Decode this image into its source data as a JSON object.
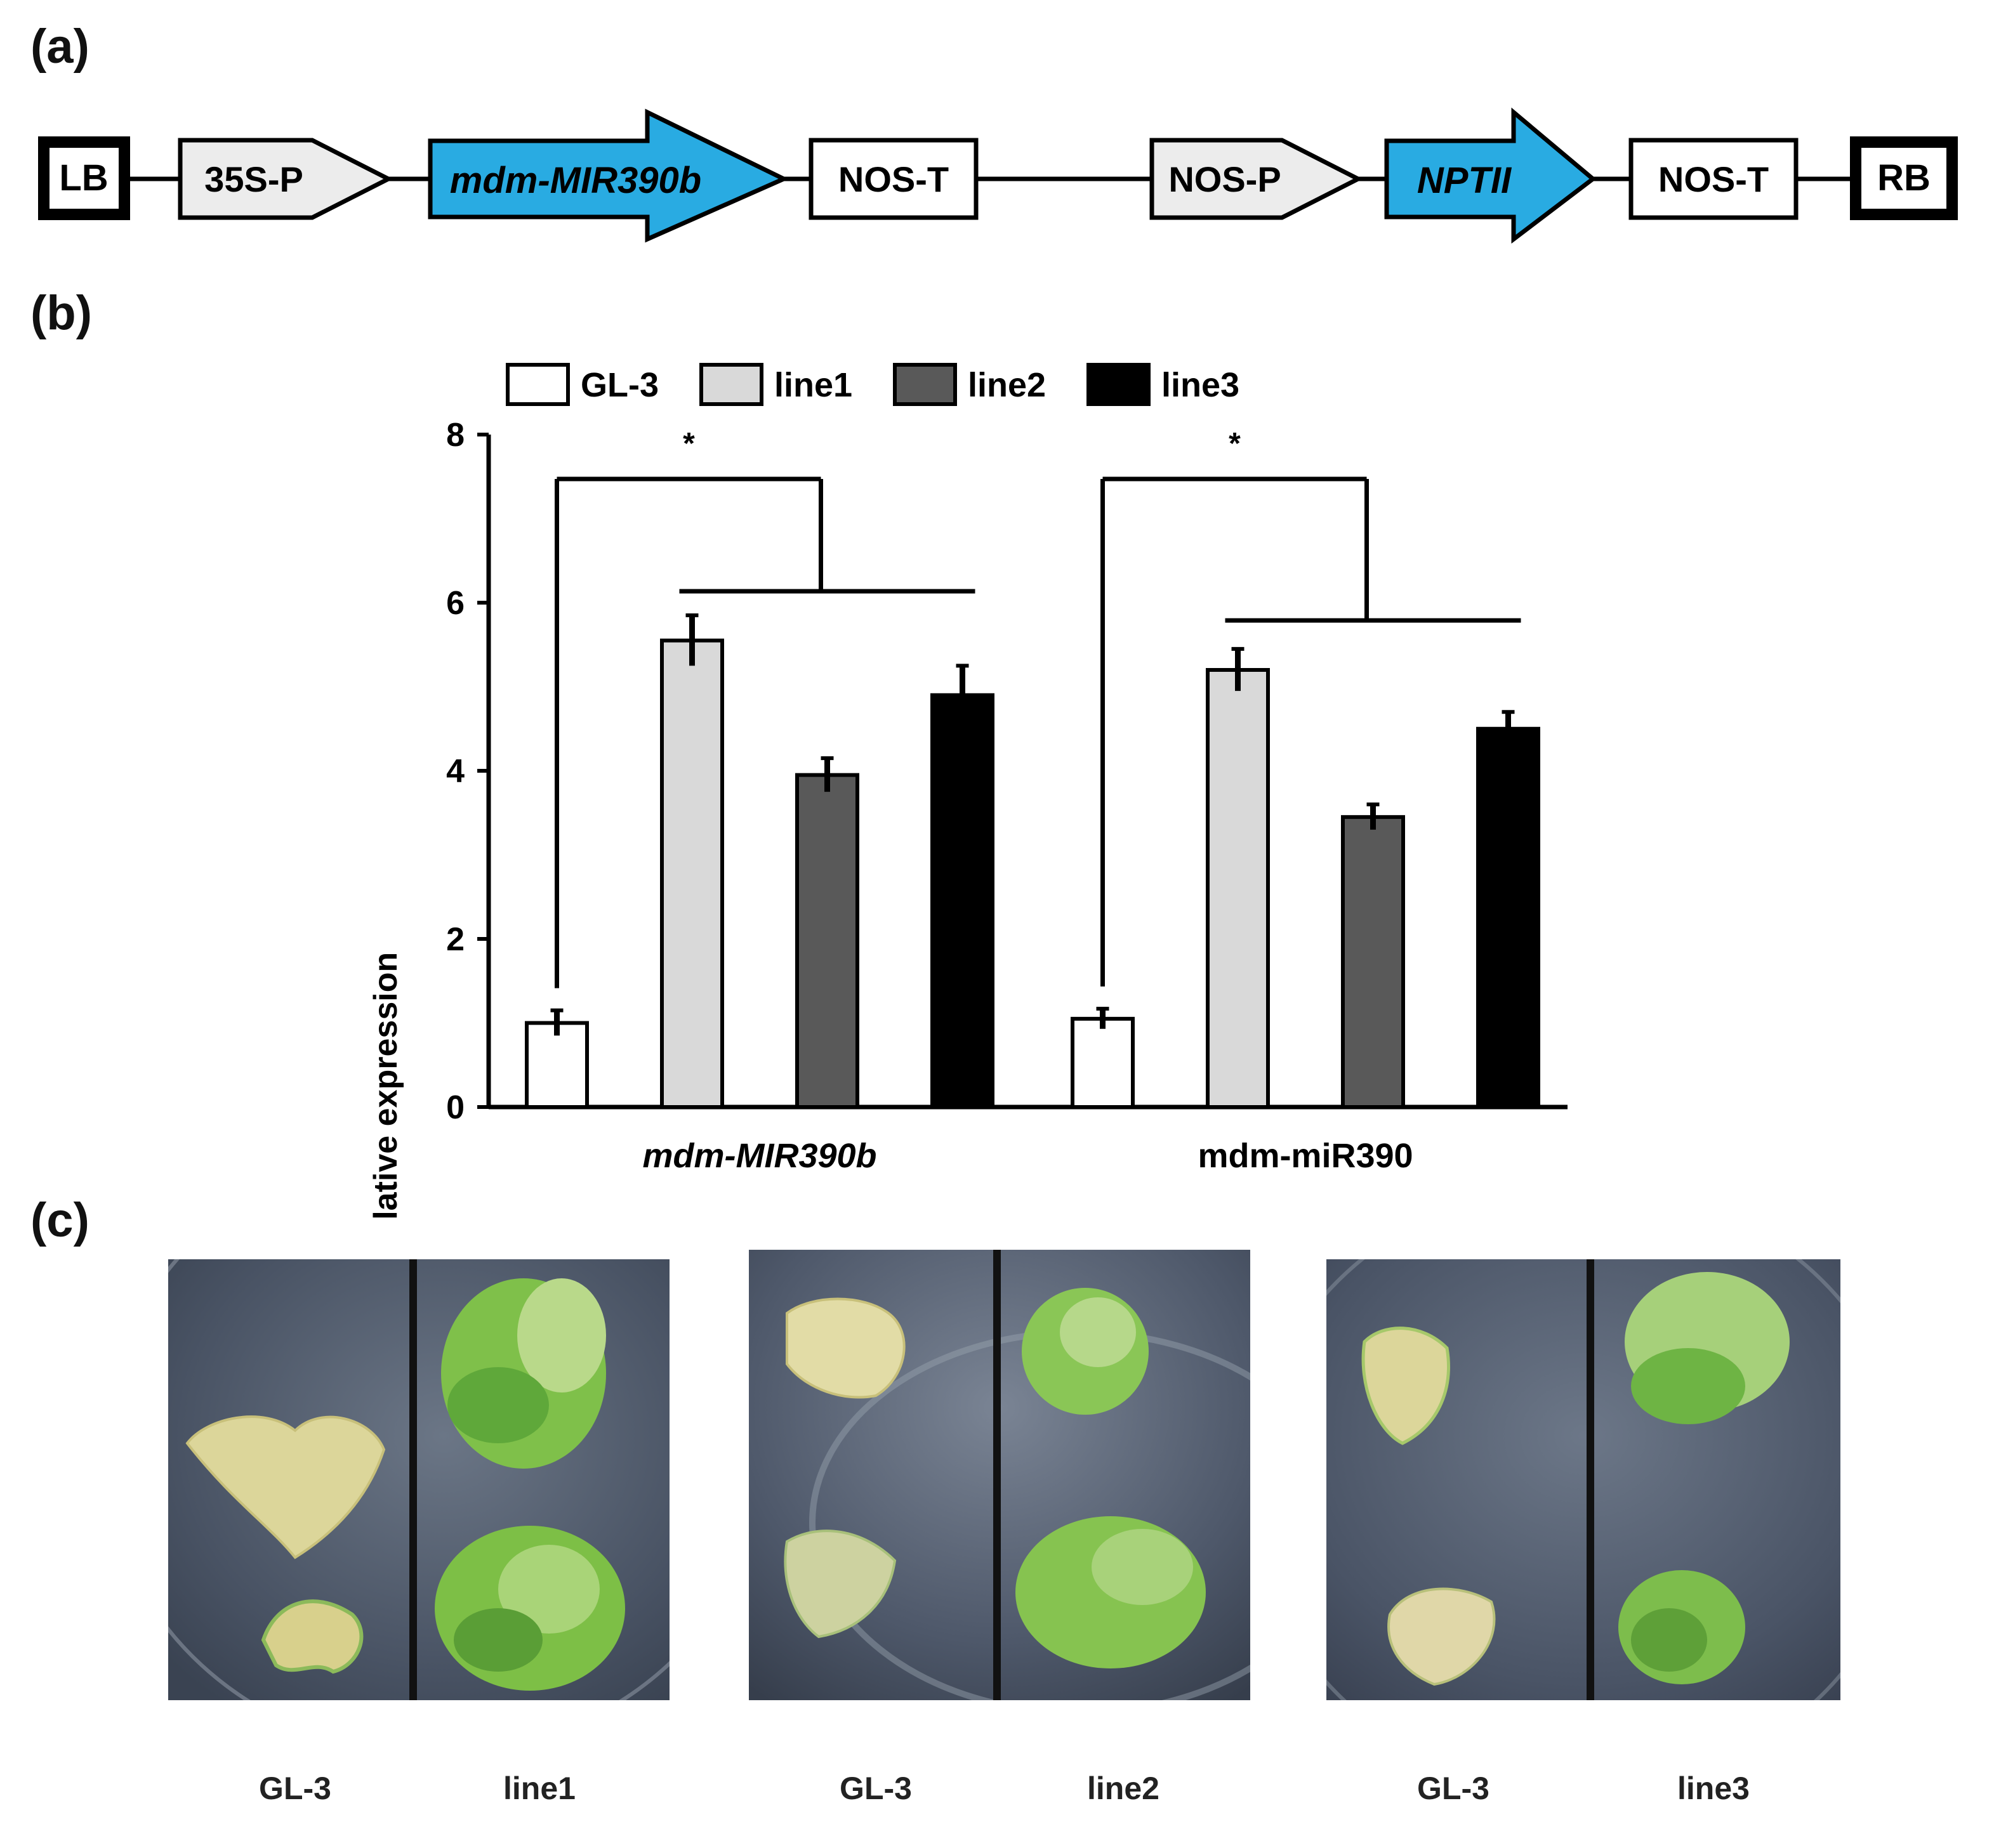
{
  "panels": {
    "a": "(a)",
    "b": "(b)",
    "c": "(c)"
  },
  "construct": {
    "elements": [
      {
        "label": "LB",
        "kind": "border"
      },
      {
        "label": "35S-P",
        "kind": "promoter"
      },
      {
        "label": "mdm-MIR390b",
        "kind": "gene"
      },
      {
        "label": "NOS-T",
        "kind": "box"
      },
      {
        "label": "NOS-P",
        "kind": "promoter"
      },
      {
        "label": "NPTII",
        "kind": "gene"
      },
      {
        "label": "NOS-T",
        "kind": "box"
      },
      {
        "label": "RB",
        "kind": "border"
      }
    ],
    "colors": {
      "gene": "#29abe2",
      "promoter": "#ececec"
    }
  },
  "chart_data": {
    "type": "bar",
    "categories": [
      "mdm-MIR390b",
      "mdm-miR390"
    ],
    "series": [
      {
        "name": "GL-3",
        "values": [
          1.0,
          1.05
        ],
        "errors": [
          0.15,
          0.12
        ],
        "color": "#ffffff"
      },
      {
        "name": "line1",
        "values": [
          5.55,
          5.2
        ],
        "errors": [
          0.3,
          0.25
        ],
        "color": "#d9d9d9"
      },
      {
        "name": "line2",
        "values": [
          3.95,
          3.45
        ],
        "errors": [
          0.2,
          0.15
        ],
        "color": "#595959"
      },
      {
        "name": "line3",
        "values": [
          4.9,
          4.5
        ],
        "errors": [
          0.35,
          0.2
        ],
        "color": "#000000"
      }
    ],
    "ylabel": "Relative expression",
    "ylim": [
      0,
      8
    ],
    "yticks": [
      0,
      2,
      4,
      6,
      8
    ],
    "significance": [
      "*",
      "*"
    ],
    "legend": "top"
  },
  "photos": [
    {
      "left": "GL-3",
      "right": "line1"
    },
    {
      "left": "GL-3",
      "right": "line2"
    },
    {
      "left": "GL-3",
      "right": "line3"
    }
  ]
}
